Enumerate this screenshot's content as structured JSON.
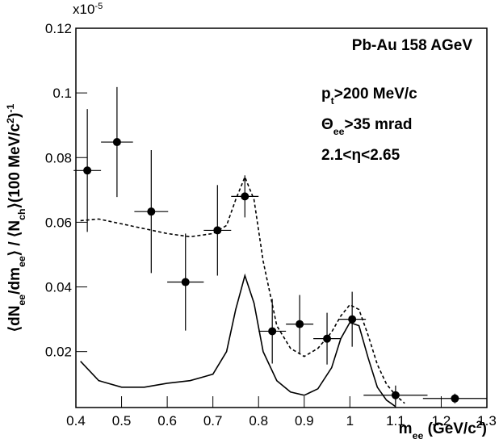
{
  "chart_data": {
    "type": "errorbar",
    "x_label": [
      {
        "text": "m"
      },
      {
        "text": "ee",
        "shift": "sub"
      },
      {
        "text": " (GeV/c"
      },
      {
        "text": "2",
        "shift": "sup"
      },
      {
        "text": ")"
      }
    ],
    "y_label": [
      {
        "text": "⟨dN"
      },
      {
        "text": "ee",
        "shift": "sub"
      },
      {
        "text": "/dm"
      },
      {
        "text": "ee",
        "shift": "sub"
      },
      {
        "text": "⟩ / ⟨N"
      },
      {
        "text": "ch",
        "shift": "sub"
      },
      {
        "text": "⟩(100 MeV/c"
      },
      {
        "text": "2",
        "shift": "sup"
      },
      {
        "text": ")"
      },
      {
        "text": "-1",
        "shift": "sup"
      }
    ],
    "y_scale_label": [
      {
        "text": "x10"
      },
      {
        "text": "-5",
        "shift": "sup"
      }
    ],
    "annotations": [
      [
        {
          "text": "Pb-Au 158 AGeV"
        }
      ],
      [
        {
          "text": "p"
        },
        {
          "text": "t",
          "shift": "sub"
        },
        {
          "text": ">200 MeV/c"
        }
      ],
      [
        {
          "text": "Θ"
        },
        {
          "text": "ee",
          "shift": "sub"
        },
        {
          "text": ">35 mrad"
        }
      ],
      [
        {
          "text": "2.1<η<2.65"
        }
      ]
    ],
    "x": [
      0.425,
      0.49,
      0.565,
      0.64,
      0.71,
      0.77,
      0.83,
      0.89,
      0.95,
      1.005,
      1.1,
      1.23
    ],
    "values": [
      0.076,
      0.0848,
      0.0633,
      0.0415,
      0.0575,
      0.068,
      0.0263,
      0.0285,
      0.024,
      0.03,
      0.0065,
      0.0055
    ],
    "yerr": [
      0.019,
      0.017,
      0.019,
      0.015,
      0.014,
      0.0065,
      0.01,
      0.009,
      0.008,
      0.0085,
      0.003,
      0.0015
    ],
    "xerr": [
      0.03,
      0.035,
      0.037,
      0.04,
      0.03,
      0.03,
      0.03,
      0.03,
      0.03,
      0.03,
      0.07,
      0.07
    ],
    "color": "#000000",
    "curves": [
      {
        "style": "solid",
        "color": "#000000",
        "x": [
          0.41,
          0.45,
          0.5,
          0.55,
          0.6,
          0.65,
          0.7,
          0.73,
          0.75,
          0.77,
          0.79,
          0.81,
          0.84,
          0.87,
          0.9,
          0.93,
          0.96,
          0.98,
          1.0,
          1.02,
          1.04,
          1.06,
          1.08,
          1.1
        ],
        "values": [
          0.017,
          0.011,
          0.009,
          0.009,
          0.0102,
          0.011,
          0.013,
          0.02,
          0.033,
          0.0435,
          0.035,
          0.02,
          0.011,
          0.0075,
          0.0065,
          0.0085,
          0.015,
          0.024,
          0.029,
          0.028,
          0.018,
          0.009,
          0.005,
          0.003
        ]
      },
      {
        "style": "dashed",
        "color": "#000000",
        "x": [
          0.41,
          0.45,
          0.5,
          0.55,
          0.6,
          0.65,
          0.7,
          0.73,
          0.75,
          0.77,
          0.79,
          0.81,
          0.84,
          0.87,
          0.9,
          0.93,
          0.96,
          0.98,
          1.0,
          1.02,
          1.04,
          1.06,
          1.08,
          1.1,
          1.12
        ],
        "values": [
          0.0605,
          0.061,
          0.0595,
          0.058,
          0.0565,
          0.0555,
          0.0565,
          0.059,
          0.067,
          0.074,
          0.067,
          0.048,
          0.028,
          0.021,
          0.0185,
          0.021,
          0.026,
          0.031,
          0.0345,
          0.033,
          0.025,
          0.016,
          0.01,
          0.0065,
          0.004
        ]
      }
    ],
    "xlim": [
      0.4,
      1.3
    ],
    "xticks": [
      0.4,
      0.5,
      0.6,
      0.7,
      0.8,
      0.9,
      1,
      1.1,
      1.2,
      1.3
    ],
    "ylim": [
      0.0027,
      0.12
    ],
    "yticks": [
      0.02,
      0.04,
      0.06,
      0.08,
      0.1,
      0.12
    ]
  }
}
